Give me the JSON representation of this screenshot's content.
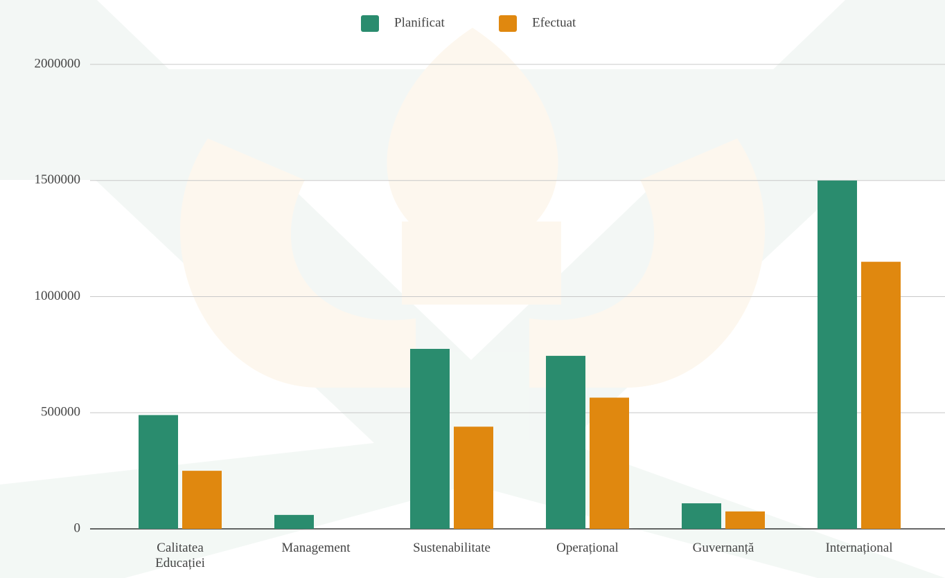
{
  "chart_data": {
    "type": "bar",
    "categories": [
      "Calitatea Educației",
      "Management",
      "Sustenabilitate",
      "Operațional",
      "Guvernanță",
      "Internațional"
    ],
    "series": [
      {
        "name": "Planificat",
        "color": "#2a8c6e",
        "values": [
          490000,
          60000,
          775000,
          745000,
          110000,
          1500000
        ]
      },
      {
        "name": "Efectuat",
        "color": "#e0880f",
        "values": [
          250000,
          0,
          440000,
          565000,
          75000,
          1150000
        ]
      }
    ],
    "ylim": [
      0,
      2000000
    ],
    "yticks": [
      0,
      500000,
      1000000,
      1500000,
      2000000
    ],
    "grid": true,
    "legend": "top"
  }
}
